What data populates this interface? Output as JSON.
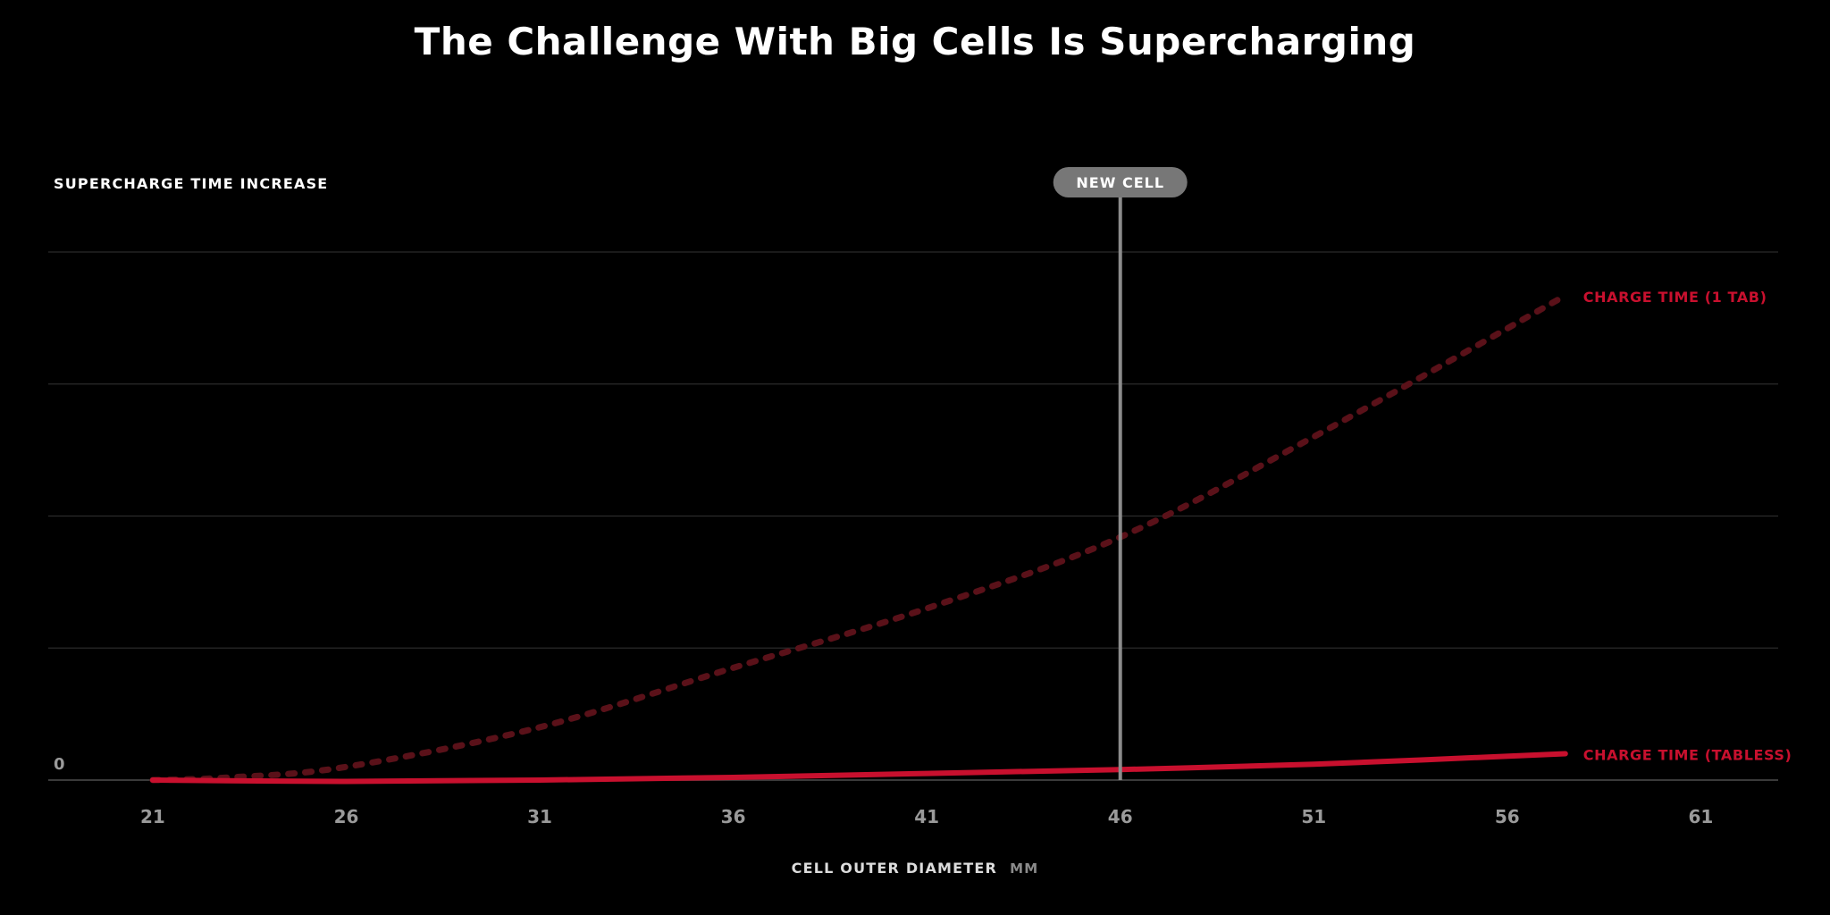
{
  "title": "The Challenge With Big Cells Is Supercharging",
  "colors": {
    "background": "#000000",
    "gridline": "#2a2a2a",
    "tick_label": "#9a9a9a",
    "series_red": "#c8102e",
    "series_dotted": "#5a1119",
    "marker_line": "#8c8c8c",
    "marker_badge": "#777777"
  },
  "chart_data": {
    "type": "line",
    "title": "The Challenge With Big Cells Is Supercharging",
    "ylabel": "SUPERCHARGE TIME INCREASE",
    "xlabel": "CELL OUTER DIAMETER",
    "xunit": "MM",
    "xlim": [
      18.3,
      63
    ],
    "xticks": [
      21,
      26,
      31,
      36,
      41,
      46,
      51,
      56,
      61
    ],
    "ylim": [
      0,
      4
    ],
    "yticks": [
      0,
      1,
      2,
      3,
      4
    ],
    "ytick_labels": [
      "0",
      "",
      "",
      "",
      ""
    ],
    "grid": true,
    "series": [
      {
        "name": "CHARGE TIME (1 TAB)",
        "style": "dotted",
        "x": [
          21,
          23,
          26,
          31,
          36,
          41,
          46,
          51,
          57.5
        ],
        "y": [
          0,
          0.02,
          0.1,
          0.4,
          0.85,
          1.3,
          1.84,
          2.6,
          3.67
        ]
      },
      {
        "name": "CHARGE TIME (TABLESS)",
        "style": "solid",
        "x": [
          21,
          26,
          31,
          36,
          41,
          46,
          51,
          57.5
        ],
        "y": [
          0,
          -0.01,
          0,
          0.02,
          0.05,
          0.08,
          0.12,
          0.2
        ]
      }
    ],
    "marker": {
      "label": "NEW CELL",
      "x": 46
    }
  }
}
